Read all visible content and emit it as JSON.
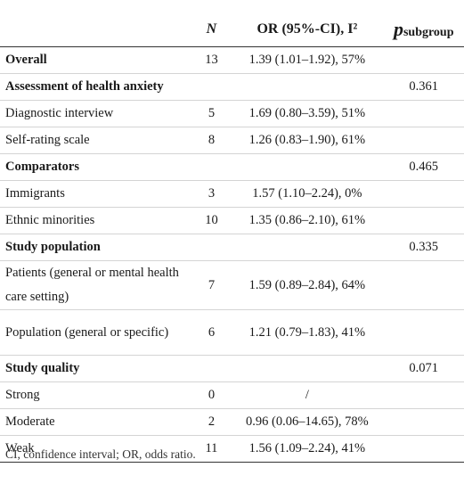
{
  "header": {
    "col_label": "",
    "col_n": "N",
    "col_or": "OR (95%-CI), I²",
    "col_p_main": "p",
    "col_p_sub": "subgroup"
  },
  "rows": [
    {
      "label": "Overall",
      "n": "13",
      "or": "1.39 (1.01–1.92), 57%",
      "p": ""
    },
    {
      "label": "Assessment of health anxiety",
      "n": "",
      "or": "",
      "p": "0.361"
    },
    {
      "label": "Diagnostic interview",
      "n": "5",
      "or": "1.69 (0.80–3.59), 51%",
      "p": ""
    },
    {
      "label": "Self-rating scale",
      "n": "8",
      "or": "1.26 (0.83–1.90), 61%",
      "p": ""
    },
    {
      "label": "Comparators",
      "n": "",
      "or": "",
      "p": "0.465"
    },
    {
      "label": "Immigrants",
      "n": "3",
      "or": "1.57 (1.10–2.24), 0%",
      "p": ""
    },
    {
      "label": "Ethnic minorities",
      "n": "10",
      "or": "1.35 (0.86–2.10), 61%",
      "p": ""
    },
    {
      "label": "Study population",
      "n": "",
      "or": "",
      "p": "0.335"
    },
    {
      "label": "Patients (general or mental health care setting)",
      "n": "7",
      "or": "1.59 (0.89–2.84), 64%",
      "p": ""
    },
    {
      "label": "Population (general or specific)",
      "n": "6",
      "or": "1.21 (0.79–1.83), 41%",
      "p": ""
    },
    {
      "label": "Study quality",
      "n": "",
      "or": "",
      "p": "0.071"
    },
    {
      "label": "Strong",
      "n": "0",
      "or": "/",
      "p": ""
    },
    {
      "label": "Moderate",
      "n": "2",
      "or": "0.96 (0.06–14.65), 78%",
      "p": ""
    },
    {
      "label": "Weak",
      "n": "11",
      "or": "1.56 (1.09–2.24), 41%",
      "p": ""
    }
  ],
  "footnote": "CI, confidence interval; OR, odds ratio."
}
